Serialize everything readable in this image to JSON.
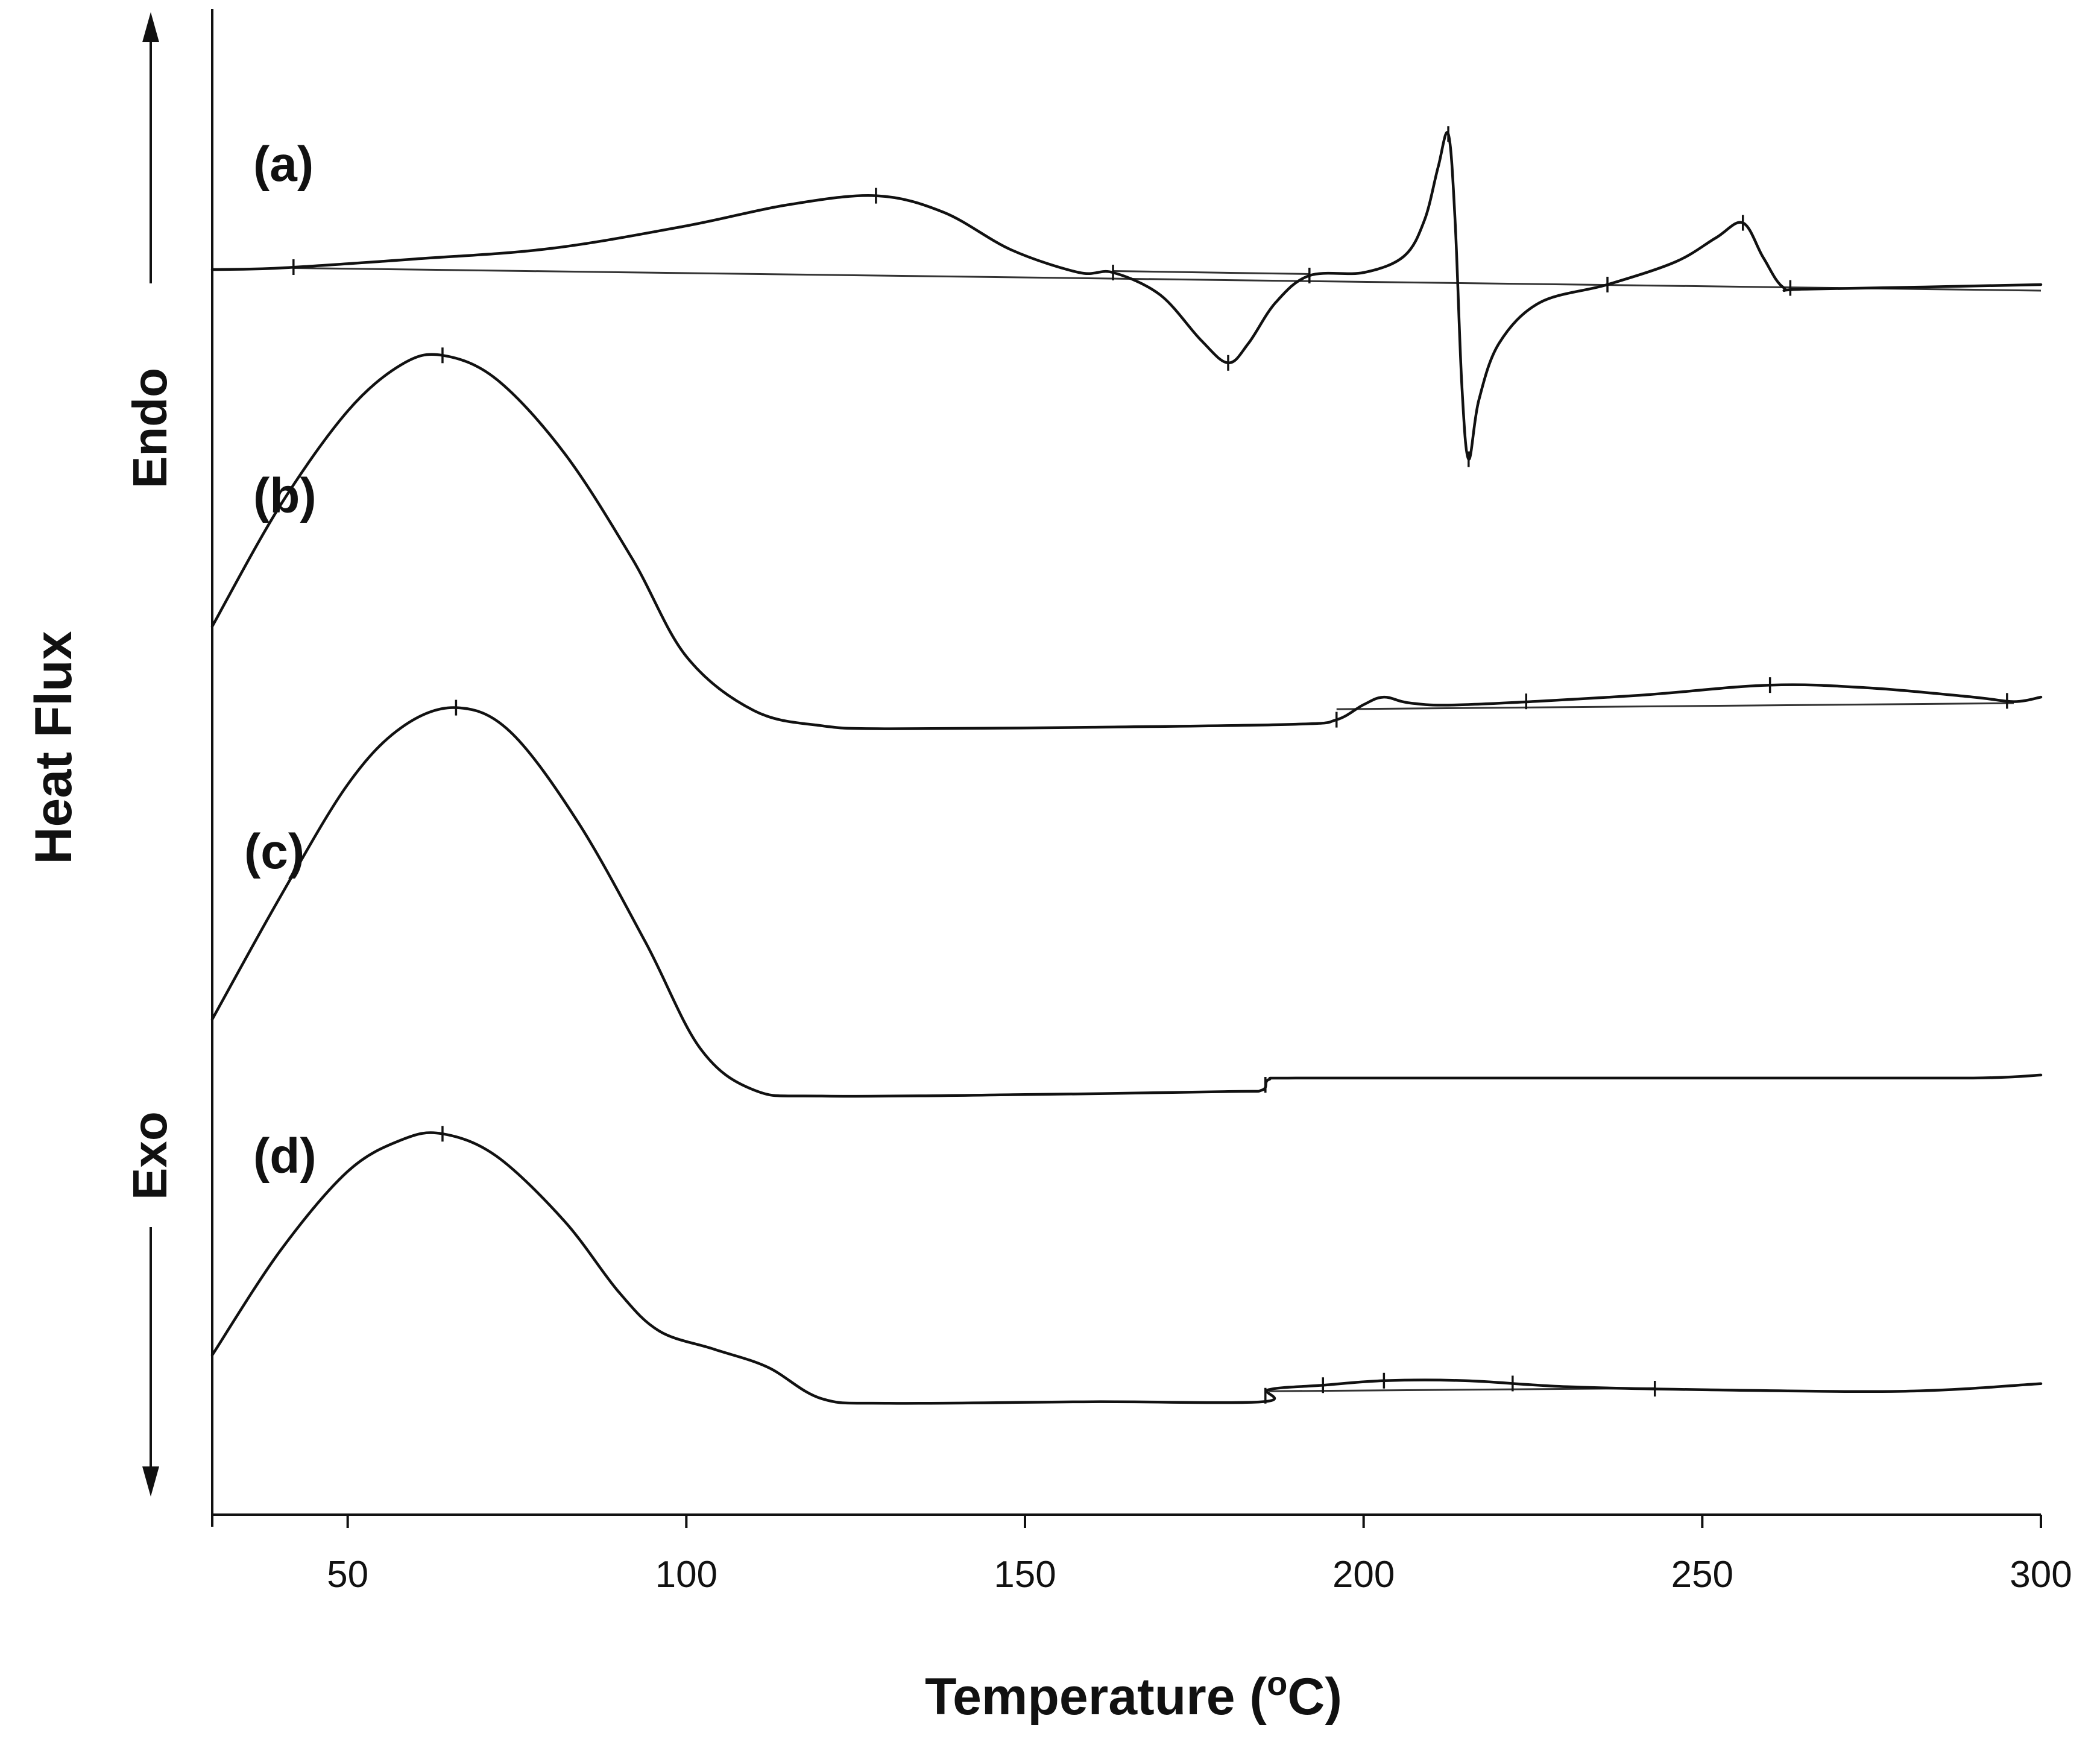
{
  "chart_data": {
    "type": "line",
    "title": "",
    "xlabel": "Temperature (°C)",
    "xlabel_main": "Temperature (",
    "xlabel_sup": "o",
    "xlabel_end": "C)",
    "ylabel": "Heat Flux",
    "endo_label": "Endo",
    "exo_label": "Exo",
    "xlim": [
      30,
      300
    ],
    "ylim": [
      0,
      100
    ],
    "x_ticks": [
      50,
      100,
      150,
      200,
      250,
      300
    ],
    "x_tick_labels": [
      "50",
      "100",
      "150",
      "200",
      "250",
      "300"
    ],
    "grid": false,
    "series": [
      {
        "name": "(a)",
        "label": "(a)",
        "points": [
          [
            30,
            82.7
          ],
          [
            40,
            82.8
          ],
          [
            60,
            83.4
          ],
          [
            80,
            84.1
          ],
          [
            100,
            85.6
          ],
          [
            115,
            87.0
          ],
          [
            128,
            87.6
          ],
          [
            138,
            86.5
          ],
          [
            148,
            84.0
          ],
          [
            158,
            82.5
          ],
          [
            163,
            82.5
          ],
          [
            170,
            81.0
          ],
          [
            176,
            78.0
          ],
          [
            180,
            76.5
          ],
          [
            183,
            77.8
          ],
          [
            187,
            80.5
          ],
          [
            192,
            82.3
          ],
          [
            200,
            82.5
          ],
          [
            206,
            83.6
          ],
          [
            209,
            86.0
          ],
          [
            211,
            89.5
          ],
          [
            212.5,
            91.7
          ],
          [
            213.5,
            86.0
          ],
          [
            214.5,
            75.0
          ],
          [
            215.5,
            70.1
          ],
          [
            217,
            74.0
          ],
          [
            220,
            77.8
          ],
          [
            226,
            80.5
          ],
          [
            236,
            81.7
          ],
          [
            246,
            83.2
          ],
          [
            252,
            84.8
          ],
          [
            256,
            85.8
          ],
          [
            259,
            83.5
          ],
          [
            262,
            81.5
          ],
          [
            266,
            81.4
          ],
          [
            300,
            81.7
          ]
        ],
        "baselines": [
          [
            [
              42,
              82.8
            ],
            [
              300,
              81.3
            ]
          ],
          [
            [
              163,
              82.6
            ],
            [
              192,
              82.4
            ]
          ]
        ],
        "markers": [
          42,
          128,
          163,
          180,
          192,
          212.5,
          215.5,
          236,
          256,
          263
        ]
      },
      {
        "name": "(b)",
        "label": "(b)",
        "points": [
          [
            30,
            59.0
          ],
          [
            40,
            67.0
          ],
          [
            50,
            73.3
          ],
          [
            58,
            76.4
          ],
          [
            64,
            77.0
          ],
          [
            72,
            75.4
          ],
          [
            82,
            70.5
          ],
          [
            92,
            63.5
          ],
          [
            100,
            57.0
          ],
          [
            110,
            53.4
          ],
          [
            120,
            52.4
          ],
          [
            130,
            52.2
          ],
          [
            160,
            52.3
          ],
          [
            190,
            52.5
          ],
          [
            196,
            52.8
          ],
          [
            200,
            53.8
          ],
          [
            203,
            54.3
          ],
          [
            207,
            53.9
          ],
          [
            215,
            53.8
          ],
          [
            240,
            54.4
          ],
          [
            260,
            55.1
          ],
          [
            275,
            54.9
          ],
          [
            290,
            54.3
          ],
          [
            296,
            54.0
          ],
          [
            300,
            54.3
          ]
        ],
        "baselines": [
          [
            [
              196,
              53.5
            ],
            [
              296,
              53.9
            ]
          ]
        ],
        "markers": [
          64,
          196,
          224,
          260,
          295
        ]
      },
      {
        "name": "(c)",
        "label": "(c)",
        "points": [
          [
            30,
            32.9
          ],
          [
            40,
            41.0
          ],
          [
            50,
            48.5
          ],
          [
            58,
            52.3
          ],
          [
            66,
            53.6
          ],
          [
            74,
            52.0
          ],
          [
            84,
            46.0
          ],
          [
            94,
            38.0
          ],
          [
            102,
            31.0
          ],
          [
            110,
            28.2
          ],
          [
            120,
            27.8
          ],
          [
            150,
            27.9
          ],
          [
            180,
            28.1
          ],
          [
            185,
            28.2
          ],
          [
            186,
            28.9
          ],
          [
            190,
            29.0
          ],
          [
            220,
            29.0
          ],
          [
            260,
            29.0
          ],
          [
            290,
            29.0
          ],
          [
            300,
            29.2
          ]
        ],
        "baselines": [],
        "markers": [
          66,
          185.5,
          185.5
        ]
      },
      {
        "name": "(d)",
        "label": "(d)",
        "points": [
          [
            30,
            10.6
          ],
          [
            40,
            17.5
          ],
          [
            50,
            22.8
          ],
          [
            58,
            24.9
          ],
          [
            64,
            25.3
          ],
          [
            72,
            23.8
          ],
          [
            82,
            19.5
          ],
          [
            90,
            14.8
          ],
          [
            96,
            12.2
          ],
          [
            104,
            11.0
          ],
          [
            112,
            9.8
          ],
          [
            120,
            7.7
          ],
          [
            130,
            7.4
          ],
          [
            160,
            7.5
          ],
          [
            185,
            7.5
          ],
          [
            186,
            8.3
          ],
          [
            194,
            8.6
          ],
          [
            203,
            8.9
          ],
          [
            215,
            8.9
          ],
          [
            230,
            8.5
          ],
          [
            250,
            8.3
          ],
          [
            280,
            8.2
          ],
          [
            300,
            8.7
          ]
        ],
        "baselines": [
          [
            [
              186,
              8.2
            ],
            [
              243,
              8.4
            ]
          ]
        ],
        "markers": [
          64,
          185.5,
          194,
          203,
          222,
          243
        ]
      }
    ]
  }
}
